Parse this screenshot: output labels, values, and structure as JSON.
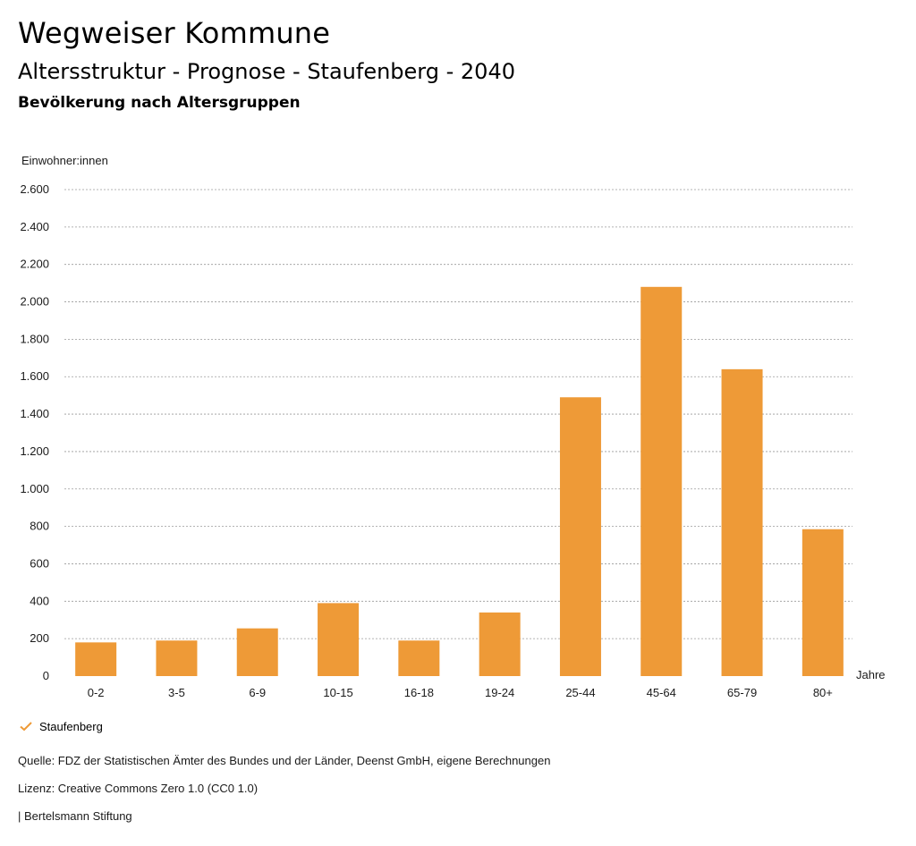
{
  "header": {
    "site_title": "Wegweiser Kommune",
    "chart_title": "Altersstruktur - Prognose - Staufenberg - 2040",
    "chart_subtitle": "Bevölkerung nach Altersgruppen"
  },
  "colors": {
    "bar": "#ee9a37",
    "grid": "#9a9a9a"
  },
  "chart_data": {
    "type": "bar",
    "categories": [
      "0-2",
      "3-5",
      "6-9",
      "10-15",
      "16-18",
      "19-24",
      "25-44",
      "45-64",
      "65-79",
      "80+"
    ],
    "series": [
      {
        "name": "Staufenberg",
        "values": [
          180,
          190,
          255,
          390,
          190,
          340,
          1490,
          2080,
          1640,
          785
        ]
      }
    ],
    "ylabel": "Einwohner:innen",
    "xlabel": "Jahre",
    "ylim": [
      0,
      2600
    ],
    "yticks": [
      0,
      200,
      400,
      600,
      800,
      1000,
      1200,
      1400,
      1600,
      1800,
      2000,
      2200,
      2400,
      2600
    ],
    "ytick_labels": [
      "0",
      "200",
      "400",
      "600",
      "800",
      "1.000",
      "1.200",
      "1.400",
      "1.600",
      "1.800",
      "2.000",
      "2.200",
      "2.400",
      "2.600"
    ],
    "grid": true,
    "legend_position": "bottom-left"
  },
  "legend": {
    "icon": "check-icon",
    "label": "Staufenberg"
  },
  "footer": {
    "source": "Quelle: FDZ der Statistischen Ämter des Bundes und der Länder, Deenst GmbH, eigene Berechnungen",
    "license": "Lizenz: Creative Commons Zero 1.0 (CC0 1.0)",
    "credit": "| Bertelsmann Stiftung"
  }
}
